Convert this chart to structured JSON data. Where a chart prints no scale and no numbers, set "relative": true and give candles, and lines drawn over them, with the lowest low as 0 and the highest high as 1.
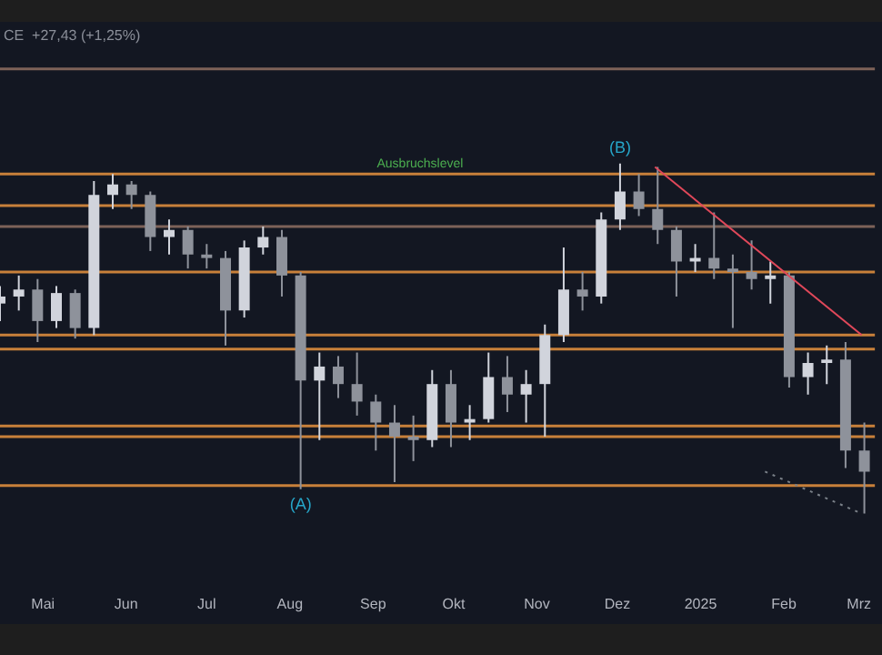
{
  "chart_data": {
    "type": "candlestick",
    "subtitle": "CE  +27,43 (+1,25%)",
    "relative": true,
    "colors": [
      "#d1d4dc",
      "#d1d4dc",
      "#8e929b",
      "#d1d4dc",
      "#8e929b",
      "#d1d4dc",
      "#d1d4dc",
      "#8e929b",
      "#8e929b",
      "#d1d4dc",
      "#8e929b",
      "#8e929b",
      "#8e929b",
      "#d1d4dc",
      "#d1d4dc",
      "#8e929b",
      "#8e929b",
      "#d1d4dc",
      "#8e929b",
      "#8e929b",
      "#8e929b",
      "#8e929b",
      "#8e929b",
      "#d1d4dc",
      "#8e929b",
      "#d1d4dc",
      "#d1d4dc",
      "#8e929b",
      "#d1d4dc",
      "#d1d4dc",
      "#d1d4dc",
      "#8e929b",
      "#d1d4dc",
      "#d1d4dc",
      "#8e929b",
      "#8e929b",
      "#8e929b",
      "#d1d4dc",
      "#8e929b",
      "#8e929b",
      "#8e929b",
      "#d1d4dc",
      "#8e929b",
      "#d1d4dc",
      "#d1d4dc",
      "#8e929b",
      "#8e929b"
    ],
    "grid": false,
    "legend": false,
    "tick_labels": "x",
    "x": [
      "2024-04-15",
      "2024-04-22",
      "2024-04-29",
      "2024-05-06",
      "2024-05-13",
      "2024-05-20",
      "2024-05-27",
      "2024-06-03",
      "2024-06-10",
      "2024-06-17",
      "2024-06-24",
      "2024-07-01",
      "2024-07-08",
      "2024-07-15",
      "2024-07-22",
      "2024-07-29",
      "2024-08-05",
      "2024-08-12",
      "2024-08-19",
      "2024-08-26",
      "2024-09-02",
      "2024-09-09",
      "2024-09-16",
      "2024-09-23",
      "2024-09-30",
      "2024-10-07",
      "2024-10-14",
      "2024-10-21",
      "2024-10-28",
      "2024-11-04",
      "2024-11-11",
      "2024-11-18",
      "2024-11-25",
      "2024-12-02",
      "2024-12-09",
      "2024-12-16",
      "2024-12-23",
      "2024-12-30",
      "2025-01-06",
      "2025-01-13",
      "2025-01-20",
      "2025-01-27",
      "2025-02-03",
      "2025-02-10",
      "2025-02-17",
      "2025-02-24",
      "2025-03-03"
    ],
    "ohlc": [
      [
        0.6,
        0.65,
        0.55,
        0.62
      ],
      [
        0.62,
        0.68,
        0.58,
        0.64
      ],
      [
        0.64,
        0.67,
        0.49,
        0.55
      ],
      [
        0.55,
        0.65,
        0.53,
        0.63
      ],
      [
        0.63,
        0.64,
        0.5,
        0.53
      ],
      [
        0.53,
        0.95,
        0.51,
        0.91
      ],
      [
        0.91,
        0.97,
        0.87,
        0.94
      ],
      [
        0.94,
        0.95,
        0.87,
        0.91
      ],
      [
        0.91,
        0.92,
        0.75,
        0.79
      ],
      [
        0.79,
        0.84,
        0.74,
        0.81
      ],
      [
        0.81,
        0.82,
        0.7,
        0.74
      ],
      [
        0.74,
        0.77,
        0.7,
        0.73
      ],
      [
        0.73,
        0.75,
        0.48,
        0.58
      ],
      [
        0.58,
        0.78,
        0.56,
        0.76
      ],
      [
        0.76,
        0.82,
        0.74,
        0.79
      ],
      [
        0.79,
        0.81,
        0.62,
        0.68
      ],
      [
        0.68,
        0.69,
        0.07,
        0.38
      ],
      [
        0.38,
        0.46,
        0.21,
        0.42
      ],
      [
        0.42,
        0.45,
        0.33,
        0.37
      ],
      [
        0.37,
        0.46,
        0.28,
        0.32
      ],
      [
        0.32,
        0.34,
        0.18,
        0.26
      ],
      [
        0.26,
        0.31,
        0.09,
        0.22
      ],
      [
        0.22,
        0.28,
        0.15,
        0.21
      ],
      [
        0.21,
        0.41,
        0.19,
        0.37
      ],
      [
        0.37,
        0.41,
        0.19,
        0.26
      ],
      [
        0.26,
        0.31,
        0.21,
        0.27
      ],
      [
        0.27,
        0.46,
        0.26,
        0.39
      ],
      [
        0.39,
        0.45,
        0.29,
        0.34
      ],
      [
        0.34,
        0.41,
        0.26,
        0.37
      ],
      [
        0.37,
        0.54,
        0.22,
        0.51
      ],
      [
        0.51,
        0.76,
        0.49,
        0.64
      ],
      [
        0.64,
        0.69,
        0.58,
        0.62
      ],
      [
        0.62,
        0.86,
        0.6,
        0.84
      ],
      [
        0.84,
        1,
        0.81,
        0.92
      ],
      [
        0.92,
        0.97,
        0.85,
        0.87
      ],
      [
        0.87,
        0.99,
        0.77,
        0.81
      ],
      [
        0.81,
        0.82,
        0.62,
        0.72
      ],
      [
        0.72,
        0.77,
        0.69,
        0.73
      ],
      [
        0.73,
        0.86,
        0.67,
        0.7
      ],
      [
        0.7,
        0.74,
        0.53,
        0.69
      ],
      [
        0.69,
        0.78,
        0.64,
        0.67
      ],
      [
        0.67,
        0.72,
        0.6,
        0.68
      ],
      [
        0.68,
        0.69,
        0.36,
        0.39
      ],
      [
        0.39,
        0.46,
        0.34,
        0.43
      ],
      [
        0.43,
        0.48,
        0.37,
        0.44
      ],
      [
        0.44,
        0.49,
        0.13,
        0.18
      ],
      [
        0.18,
        0.26,
        0,
        0.12
      ]
    ],
    "series": [
      {
        "type": "line",
        "color": "#e0485a",
        "line_style": "solid",
        "x": [
          "2024-12-15",
          "2025-03-02"
        ],
        "values": [
          0.99,
          0.51
        ]
      },
      {
        "type": "line",
        "color": "#7a8088",
        "line_style": "dotted",
        "x": [
          "2025-01-25",
          "2025-03-02"
        ],
        "values": [
          0.12,
          0
        ]
      }
    ],
    "xlim": [
      "2024-04-15",
      "2025-03-07"
    ],
    "xticks": [
      {
        "value": "2024-05-01",
        "label": "Mai"
      },
      {
        "value": "2024-06-01",
        "label": "Jun"
      },
      {
        "value": "2024-07-01",
        "label": "Jul"
      },
      {
        "value": "2024-08-01",
        "label": "Aug"
      },
      {
        "value": "2024-09-01",
        "label": "Sep"
      },
      {
        "value": "2024-10-01",
        "label": "Okt"
      },
      {
        "value": "2024-11-01",
        "label": "Nov"
      },
      {
        "value": "2024-12-01",
        "label": "Dez"
      },
      {
        "value": "2025-01-01",
        "label": "2025"
      },
      {
        "value": "2025-02-01",
        "label": "Feb"
      },
      {
        "value": "2025-03-01",
        "label": "Mrz"
      }
    ],
    "ref_lines": [
      {
        "axis": "y",
        "value": 1.27,
        "color": "#7d6258"
      },
      {
        "axis": "y",
        "value": 0.97,
        "color": "#c8803a",
        "label": "Ausbruchslevel"
      },
      {
        "axis": "y",
        "value": 0.88,
        "color": "#c8803a"
      },
      {
        "axis": "y",
        "value": 0.82,
        "color": "#7d6258"
      },
      {
        "axis": "y",
        "value": 0.69,
        "color": "#c8803a"
      },
      {
        "axis": "y",
        "value": 0.51,
        "color": "#c8803a"
      },
      {
        "axis": "y",
        "value": 0.47,
        "color": "#c8803a"
      },
      {
        "axis": "y",
        "value": 0.25,
        "color": "#c8803a"
      },
      {
        "axis": "y",
        "value": 0.22,
        "color": "#c8803a"
      },
      {
        "axis": "y",
        "value": 0.08,
        "color": "#c8803a"
      }
    ],
    "annotations": [
      {
        "text": "(A)",
        "x": "2024-08-05",
        "y": 0.07
      },
      {
        "text": "(B)",
        "x": "2024-12-02",
        "y": 1
      }
    ]
  }
}
